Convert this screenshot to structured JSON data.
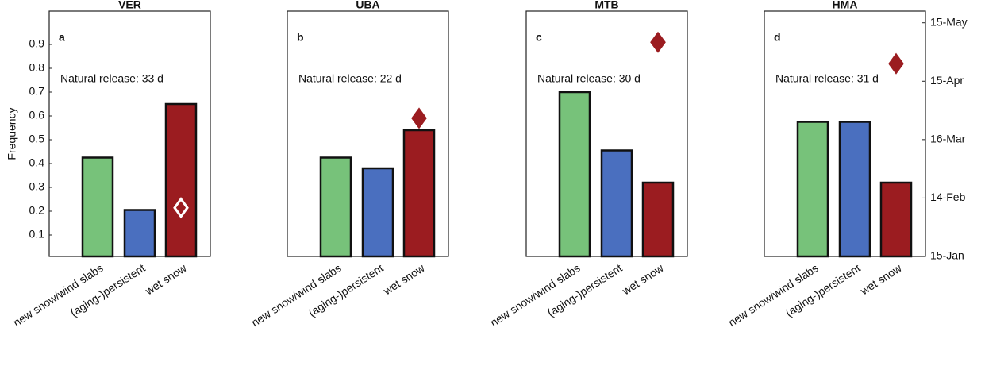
{
  "chart_data": [
    {
      "type": "bar",
      "title": "VER",
      "panel_label": "a",
      "annotation": "Natural release: 33 d",
      "ylabel": "Frequency",
      "categories": [
        "new snow/wind slabs",
        "(aging-)persistent",
        "wet snow"
      ],
      "values": [
        0.425,
        0.205,
        0.65
      ],
      "colors": [
        "#77c27a",
        "#4a6fbf",
        "#9b1c20"
      ],
      "ylim": [
        0.01,
        1.04
      ],
      "yticks": [
        0.1,
        0.2,
        0.3,
        0.4,
        0.5,
        0.6,
        0.7,
        0.8,
        0.9
      ],
      "marker": {
        "value": 40,
        "fill": "#9b1c20",
        "stroke": "#ffffff"
      },
      "y2lim": [
        15,
        141
      ]
    },
    {
      "type": "bar",
      "title": "UBA",
      "panel_label": "b",
      "annotation": "Natural release: 22 d",
      "categories": [
        "new snow/wind slabs",
        "(aging-)persistent",
        "wet snow"
      ],
      "values": [
        0.425,
        0.38,
        0.54
      ],
      "colors": [
        "#77c27a",
        "#4a6fbf",
        "#9b1c20"
      ],
      "ylim": [
        0.01,
        1.04
      ],
      "marker": {
        "value": 86,
        "fill": "#9b1c20",
        "stroke": "#9b1c20"
      },
      "y2lim": [
        15,
        141
      ]
    },
    {
      "type": "bar",
      "title": "MTB",
      "panel_label": "c",
      "annotation": "Natural release: 30 d",
      "categories": [
        "new snow/wind slabs",
        "(aging-)persistent",
        "wet snow"
      ],
      "values": [
        0.7,
        0.455,
        0.32
      ],
      "colors": [
        "#77c27a",
        "#4a6fbf",
        "#9b1c20"
      ],
      "ylim": [
        0.01,
        1.04
      ],
      "marker": {
        "value": 125,
        "fill": "#9b1c20",
        "stroke": "#9b1c20"
      },
      "y2lim": [
        15,
        141
      ]
    },
    {
      "type": "bar",
      "title": "HMA",
      "panel_label": "d",
      "annotation": "Natural release: 31 d",
      "categories": [
        "new snow/wind slabs",
        "(aging-)persistent",
        "wet snow"
      ],
      "values": [
        0.575,
        0.575,
        0.32
      ],
      "colors": [
        "#77c27a",
        "#4a6fbf",
        "#9b1c20"
      ],
      "ylim": [
        0.01,
        1.04
      ],
      "marker": {
        "value": 114,
        "fill": "#9b1c20",
        "stroke": "#9b1c20"
      },
      "y2lim": [
        15,
        141
      ],
      "y2ticks": [
        {
          "value": 15,
          "label": "15-Jan"
        },
        {
          "value": 45,
          "label": "14-Feb"
        },
        {
          "value": 75,
          "label": "16-Mar"
        },
        {
          "value": 105,
          "label": "15-Apr"
        },
        {
          "value": 135,
          "label": "15-May"
        }
      ]
    }
  ]
}
